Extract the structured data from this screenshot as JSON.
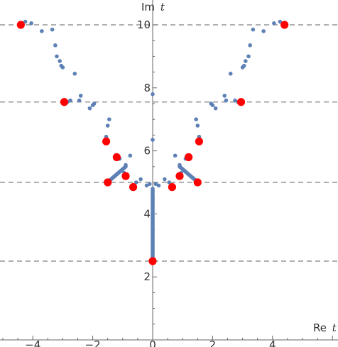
{
  "chart_data": {
    "type": "scatter",
    "xlabel_main": "Re",
    "xlabel_var": "t",
    "ylabel_main": "Im",
    "ylabel_var": "t",
    "xlim": [
      -5.1,
      6.1
    ],
    "ylim": [
      0.0,
      10.35
    ],
    "x_ticks": [
      -4,
      -2,
      0,
      2,
      4
    ],
    "y_ticks": [
      2,
      4,
      6,
      8,
      10
    ],
    "x_tick_labels": [
      "−4",
      "−2",
      "0",
      "2",
      "4"
    ],
    "y_tick_labels": [
      "2",
      "4",
      "6",
      "8",
      "10"
    ],
    "reference_lines_y": [
      2.5,
      5.0,
      7.55,
      10.0
    ],
    "colors": {
      "points": "#5e81b5",
      "highlight": "#ff0000",
      "reference": "#808080",
      "axis": "#666666"
    },
    "blue_points": [
      [
        -4.05,
        10.05
      ],
      [
        -4.25,
        10.1
      ],
      [
        -3.7,
        9.8
      ],
      [
        -3.35,
        9.85
      ],
      [
        -3.25,
        9.35
      ],
      [
        -3.2,
        9.0
      ],
      [
        -3.1,
        8.85
      ],
      [
        -3.05,
        8.7
      ],
      [
        -3.0,
        8.65
      ],
      [
        -2.6,
        8.45
      ],
      [
        -2.4,
        7.75
      ],
      [
        -2.45,
        7.6
      ],
      [
        -2.75,
        7.6
      ],
      [
        -2.85,
        7.55
      ],
      [
        -2.0,
        7.45
      ],
      [
        -1.95,
        7.5
      ],
      [
        -2.1,
        7.35
      ],
      [
        -1.45,
        7.0
      ],
      [
        -1.5,
        6.8
      ],
      [
        -0.75,
        5.85
      ],
      [
        -1.55,
        6.45
      ],
      [
        -1.1,
        5.75
      ],
      [
        -0.9,
        5.55
      ],
      [
        -0.95,
        5.3
      ],
      [
        -0.55,
        5.0
      ],
      [
        -0.4,
        5.1
      ],
      [
        -0.2,
        4.9
      ],
      [
        -0.1,
        4.95
      ],
      [
        0.0,
        7.8
      ],
      [
        0.0,
        6.35
      ],
      [
        0.0,
        4.8
      ],
      [
        0.1,
        4.95
      ],
      [
        0.2,
        4.9
      ],
      [
        0.4,
        5.1
      ],
      [
        0.55,
        5.0
      ],
      [
        0.75,
        5.85
      ],
      [
        0.95,
        5.3
      ],
      [
        0.9,
        5.55
      ],
      [
        1.1,
        5.75
      ],
      [
        1.45,
        7.0
      ],
      [
        1.5,
        6.8
      ],
      [
        1.55,
        6.45
      ],
      [
        2.0,
        7.45
      ],
      [
        1.95,
        7.5
      ],
      [
        2.1,
        7.35
      ],
      [
        2.4,
        7.75
      ],
      [
        2.45,
        7.6
      ],
      [
        2.75,
        7.6
      ],
      [
        2.85,
        7.55
      ],
      [
        2.6,
        8.45
      ],
      [
        3.0,
        8.65
      ],
      [
        3.05,
        8.7
      ],
      [
        3.1,
        8.85
      ],
      [
        3.2,
        9.0
      ],
      [
        3.25,
        9.35
      ],
      [
        3.35,
        9.85
      ],
      [
        3.7,
        9.8
      ],
      [
        4.05,
        10.05
      ],
      [
        4.25,
        10.1
      ]
    ],
    "blue_segments": [
      [
        [
          0.0,
          2.5
        ],
        [
          0.0,
          4.75
        ]
      ],
      [
        [
          -1.45,
          5.05
        ],
        [
          -0.9,
          5.5
        ]
      ],
      [
        [
          1.45,
          5.05
        ],
        [
          0.9,
          5.5
        ]
      ]
    ],
    "red_points": [
      [
        -4.4,
        10.0
      ],
      [
        4.4,
        10.0
      ],
      [
        -2.95,
        7.55
      ],
      [
        2.95,
        7.55
      ],
      [
        -1.55,
        6.3
      ],
      [
        1.55,
        6.3
      ],
      [
        -1.2,
        5.8
      ],
      [
        1.2,
        5.8
      ],
      [
        -1.5,
        5.0
      ],
      [
        1.5,
        5.0
      ],
      [
        -0.9,
        5.2
      ],
      [
        0.9,
        5.2
      ],
      [
        -0.65,
        4.85
      ],
      [
        0.65,
        4.85
      ],
      [
        0.0,
        2.5
      ]
    ]
  }
}
